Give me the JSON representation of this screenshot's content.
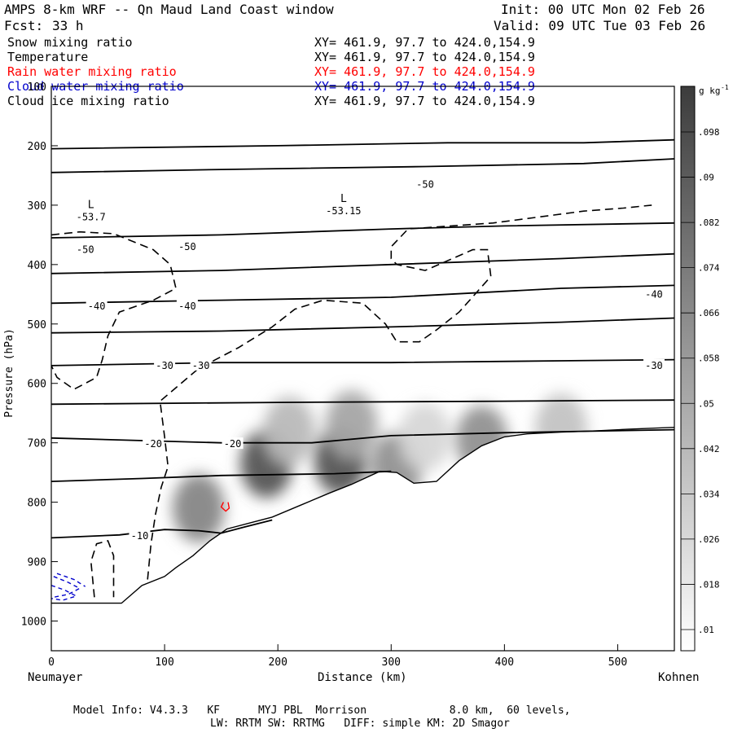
{
  "header": {
    "title": "AMPS 8-km WRF -- Qn Maud Land Coast window",
    "init": "Init: 00 UTC Mon 02 Feb 26",
    "fcst_label": "Fcst:",
    "fcst_value": "33 h",
    "valid": "Valid: 09 UTC Tue 03 Feb 26"
  },
  "fields": [
    {
      "name": "Snow mixing ratio",
      "range": "XY= 461.9, 97.7 to 424.0,154.9",
      "color": "#000000"
    },
    {
      "name": "Temperature",
      "range": "XY= 461.9, 97.7 to 424.0,154.9",
      "color": "#000000"
    },
    {
      "name": "Rain water mixing ratio",
      "range": "XY= 461.9, 97.7 to 424.0,154.9",
      "color": "#ff0000"
    },
    {
      "name": "Cloud water mixing ratio",
      "range": "XY= 461.9, 97.7 to 424.0,154.9",
      "color": "#0000cc"
    },
    {
      "name": "Cloud ice mixing ratio",
      "range": "XY= 461.9, 97.7 to 424.0,154.9",
      "color": "#000000"
    }
  ],
  "chart_data": {
    "type": "heatmap",
    "xlabel": "Distance (km)",
    "ylabel": "Pressure (hPa)",
    "xlim": [
      0,
      550
    ],
    "ylim": [
      1050,
      100
    ],
    "x_ticks": [
      0,
      100,
      200,
      300,
      400,
      500
    ],
    "y_ticks": [
      100,
      200,
      300,
      400,
      500,
      600,
      700,
      800,
      900,
      1000
    ],
    "x_endpoints": {
      "left": "Neumayer",
      "right": "Kohnen"
    },
    "colorbar": {
      "unit_base": "g kg",
      "unit_exp": "-1",
      "ticks": [
        ".098",
        ".09",
        ".082",
        ".074",
        ".066",
        ".058",
        ".05",
        ".042",
        ".034",
        ".026",
        ".018",
        ".01"
      ]
    },
    "temperature_labels": [
      {
        "text": "-50",
        "x": 330,
        "p": 265
      },
      {
        "text": "-50",
        "x": 30,
        "p": 375
      },
      {
        "text": "-50",
        "x": 120,
        "p": 370
      },
      {
        "text": "-40",
        "x": 532,
        "p": 450
      },
      {
        "text": "-40",
        "x": 40,
        "p": 470
      },
      {
        "text": "-40",
        "x": 120,
        "p": 470
      },
      {
        "text": "-30",
        "x": 100,
        "p": 570
      },
      {
        "text": "-30",
        "x": 132,
        "p": 570
      },
      {
        "text": "-30",
        "x": 532,
        "p": 570
      },
      {
        "text": "-20",
        "x": 90,
        "p": 702
      },
      {
        "text": "-20",
        "x": 160,
        "p": 702
      },
      {
        "text": "-10",
        "x": 78,
        "p": 857
      }
    ],
    "minima": [
      {
        "marker": "L",
        "value": "-53.7",
        "x": 35,
        "p": 305
      },
      {
        "marker": "L",
        "value": "-53.15",
        "x": 258,
        "p": 295
      }
    ],
    "snow_blobs": [
      {
        "x": 130,
        "p": 810,
        "amp": 0.6
      },
      {
        "x": 190,
        "p": 735,
        "amp": 0.85
      },
      {
        "x": 210,
        "p": 680,
        "amp": 0.35
      },
      {
        "x": 255,
        "p": 730,
        "amp": 0.85
      },
      {
        "x": 265,
        "p": 670,
        "amp": 0.45
      },
      {
        "x": 305,
        "p": 740,
        "amp": 0.55
      },
      {
        "x": 380,
        "p": 695,
        "amp": 0.55
      },
      {
        "x": 450,
        "p": 675,
        "amp": 0.3
      },
      {
        "x": 330,
        "p": 690,
        "amp": 0.2
      }
    ],
    "terrain": [
      [
        0,
        970
      ],
      [
        62,
        970
      ],
      [
        80,
        940
      ],
      [
        100,
        925
      ],
      [
        110,
        910
      ],
      [
        125,
        890
      ],
      [
        140,
        865
      ],
      [
        155,
        845
      ],
      [
        175,
        835
      ],
      [
        195,
        825
      ],
      [
        220,
        805
      ],
      [
        245,
        785
      ],
      [
        265,
        770
      ],
      [
        290,
        748
      ],
      [
        305,
        750
      ],
      [
        320,
        768
      ],
      [
        340,
        765
      ],
      [
        360,
        730
      ],
      [
        380,
        705
      ],
      [
        400,
        690
      ],
      [
        420,
        685
      ],
      [
        450,
        682
      ],
      [
        480,
        680
      ],
      [
        510,
        677
      ],
      [
        550,
        674
      ]
    ],
    "isotherms": [
      [
        [
          0,
          205
        ],
        [
          200,
          200
        ],
        [
          350,
          195
        ],
        [
          470,
          195
        ],
        [
          550,
          190
        ]
      ],
      [
        [
          0,
          245
        ],
        [
          150,
          240
        ],
        [
          330,
          235
        ],
        [
          470,
          230
        ],
        [
          550,
          222
        ]
      ],
      [
        [
          0,
          355
        ],
        [
          150,
          350
        ],
        [
          300,
          340
        ],
        [
          400,
          335
        ],
        [
          550,
          330
        ]
      ],
      [
        [
          0,
          415
        ],
        [
          150,
          410
        ],
        [
          300,
          400
        ],
        [
          450,
          390
        ],
        [
          550,
          382
        ]
      ],
      [
        [
          0,
          465
        ],
        [
          150,
          460
        ],
        [
          300,
          455
        ],
        [
          450,
          440
        ],
        [
          550,
          435
        ]
      ],
      [
        [
          0,
          515
        ],
        [
          150,
          512
        ],
        [
          300,
          505
        ],
        [
          450,
          497
        ],
        [
          550,
          490
        ]
      ],
      [
        [
          0,
          570
        ],
        [
          150,
          565
        ],
        [
          300,
          565
        ],
        [
          450,
          562
        ],
        [
          550,
          560
        ]
      ],
      [
        [
          0,
          635
        ],
        [
          200,
          632
        ],
        [
          400,
          630
        ],
        [
          550,
          628
        ]
      ],
      [
        [
          0,
          692
        ],
        [
          150,
          700
        ],
        [
          230,
          700
        ],
        [
          300,
          688
        ],
        [
          400,
          683
        ],
        [
          550,
          678
        ]
      ],
      [
        [
          0,
          765
        ],
        [
          80,
          760
        ],
        [
          150,
          755
        ],
        [
          250,
          752
        ],
        [
          300,
          748
        ]
      ],
      [
        [
          0,
          860
        ],
        [
          60,
          855
        ],
        [
          100,
          846
        ],
        [
          130,
          848
        ],
        [
          150,
          852
        ],
        [
          170,
          842
        ],
        [
          195,
          830
        ]
      ]
    ],
    "ice_contours": [
      [
        [
          0,
          350
        ],
        [
          25,
          345
        ],
        [
          55,
          348
        ],
        [
          90,
          375
        ],
        [
          105,
          400
        ],
        [
          110,
          440
        ],
        [
          90,
          460
        ],
        [
          60,
          480
        ],
        [
          50,
          520
        ],
        [
          45,
          560
        ],
        [
          40,
          590
        ],
        [
          20,
          610
        ],
        [
          5,
          590
        ],
        [
          0,
          570
        ]
      ],
      [
        [
          85,
          930
        ],
        [
          88,
          870
        ],
        [
          92,
          820
        ],
        [
          97,
          775
        ],
        [
          103,
          740
        ],
        [
          100,
          690
        ],
        [
          96,
          630
        ],
        [
          130,
          575
        ],
        [
          165,
          540
        ],
        [
          195,
          505
        ],
        [
          215,
          475
        ],
        [
          240,
          460
        ],
        [
          275,
          465
        ],
        [
          295,
          500
        ],
        [
          305,
          530
        ],
        [
          325,
          530
        ],
        [
          340,
          510
        ],
        [
          360,
          480
        ],
        [
          388,
          420
        ],
        [
          385,
          375
        ],
        [
          372,
          375
        ],
        [
          348,
          395
        ],
        [
          330,
          410
        ],
        [
          305,
          400
        ],
        [
          300,
          390
        ],
        [
          300,
          370
        ],
        [
          315,
          340
        ],
        [
          390,
          330
        ],
        [
          430,
          320
        ],
        [
          470,
          310
        ],
        [
          505,
          305
        ],
        [
          530,
          300
        ]
      ],
      [
        [
          38,
          960
        ],
        [
          35,
          900
        ],
        [
          40,
          870
        ],
        [
          50,
          865
        ],
        [
          55,
          890
        ],
        [
          55,
          930
        ],
        [
          55,
          960
        ]
      ]
    ],
    "cloud_water_contours": [
      [
        [
          2,
          925
        ],
        [
          15,
          935
        ],
        [
          25,
          945
        ],
        [
          15,
          955
        ],
        [
          2,
          960
        ]
      ],
      [
        [
          0,
          940
        ],
        [
          12,
          948
        ],
        [
          22,
          958
        ],
        [
          10,
          965
        ],
        [
          0,
          962
        ]
      ],
      [
        [
          5,
          920
        ],
        [
          20,
          930
        ],
        [
          30,
          942
        ]
      ]
    ],
    "rain_contours": [
      [
        [
          152,
          800
        ],
        [
          150,
          808
        ],
        [
          154,
          815
        ],
        [
          157,
          810
        ],
        [
          156,
          800
        ]
      ]
    ]
  },
  "footer": {
    "line1": "Model Info: V4.3.3   KF      MYJ PBL  Morrison             8.0 km,  60 levels,",
    "line2": "LW: RRTM SW: RRTMG   DIFF: simple KM: 2D Smagor"
  }
}
